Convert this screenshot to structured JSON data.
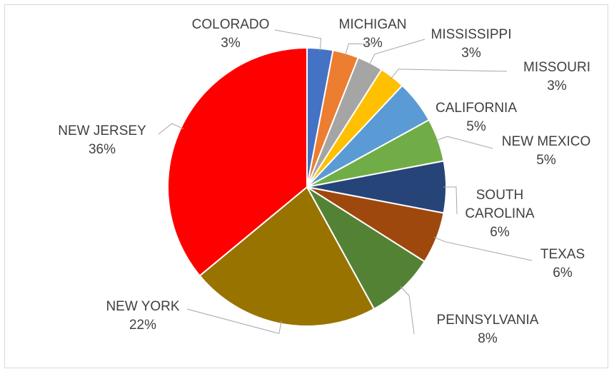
{
  "chart_data": {
    "type": "pie",
    "categories": [
      "COLORADO",
      "MICHIGAN",
      "MISSISSIPPI",
      "MISSOURI",
      "CALIFORNIA",
      "NEW MEXICO",
      "SOUTH CAROLINA",
      "TEXAS",
      "PENNSYLVANIA",
      "NEW YORK",
      "NEW JERSEY"
    ],
    "values": [
      3,
      3,
      3,
      3,
      5,
      5,
      6,
      6,
      8,
      22,
      36
    ],
    "value_labels": [
      "3%",
      "3%",
      "3%",
      "3%",
      "5%",
      "5%",
      "6%",
      "6%",
      "8%",
      "22%",
      "36%"
    ],
    "colors": [
      "#4472c4",
      "#ed7d31",
      "#a5a5a5",
      "#ffc000",
      "#5b9bd5",
      "#70ad47",
      "#264478",
      "#9e480e",
      "#548235",
      "#997300",
      "#ff0000"
    ]
  }
}
